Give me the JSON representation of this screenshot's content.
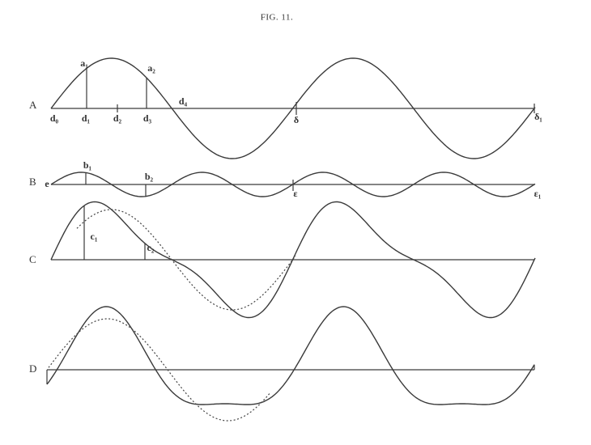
{
  "title": "FIG. 11.",
  "rows": [
    {
      "label": "A",
      "points": [
        "a₁",
        "a₂",
        "d₀",
        "d₁",
        "d₂",
        "d₃",
        "d₄",
        "δ",
        "δ₁"
      ]
    },
    {
      "label": "B",
      "points": [
        "b₁",
        "b₂",
        "e",
        "ε",
        "ε₁"
      ]
    },
    {
      "label": "C",
      "points": [
        "c₁",
        "c₂"
      ]
    },
    {
      "label": "D",
      "points": []
    }
  ]
}
